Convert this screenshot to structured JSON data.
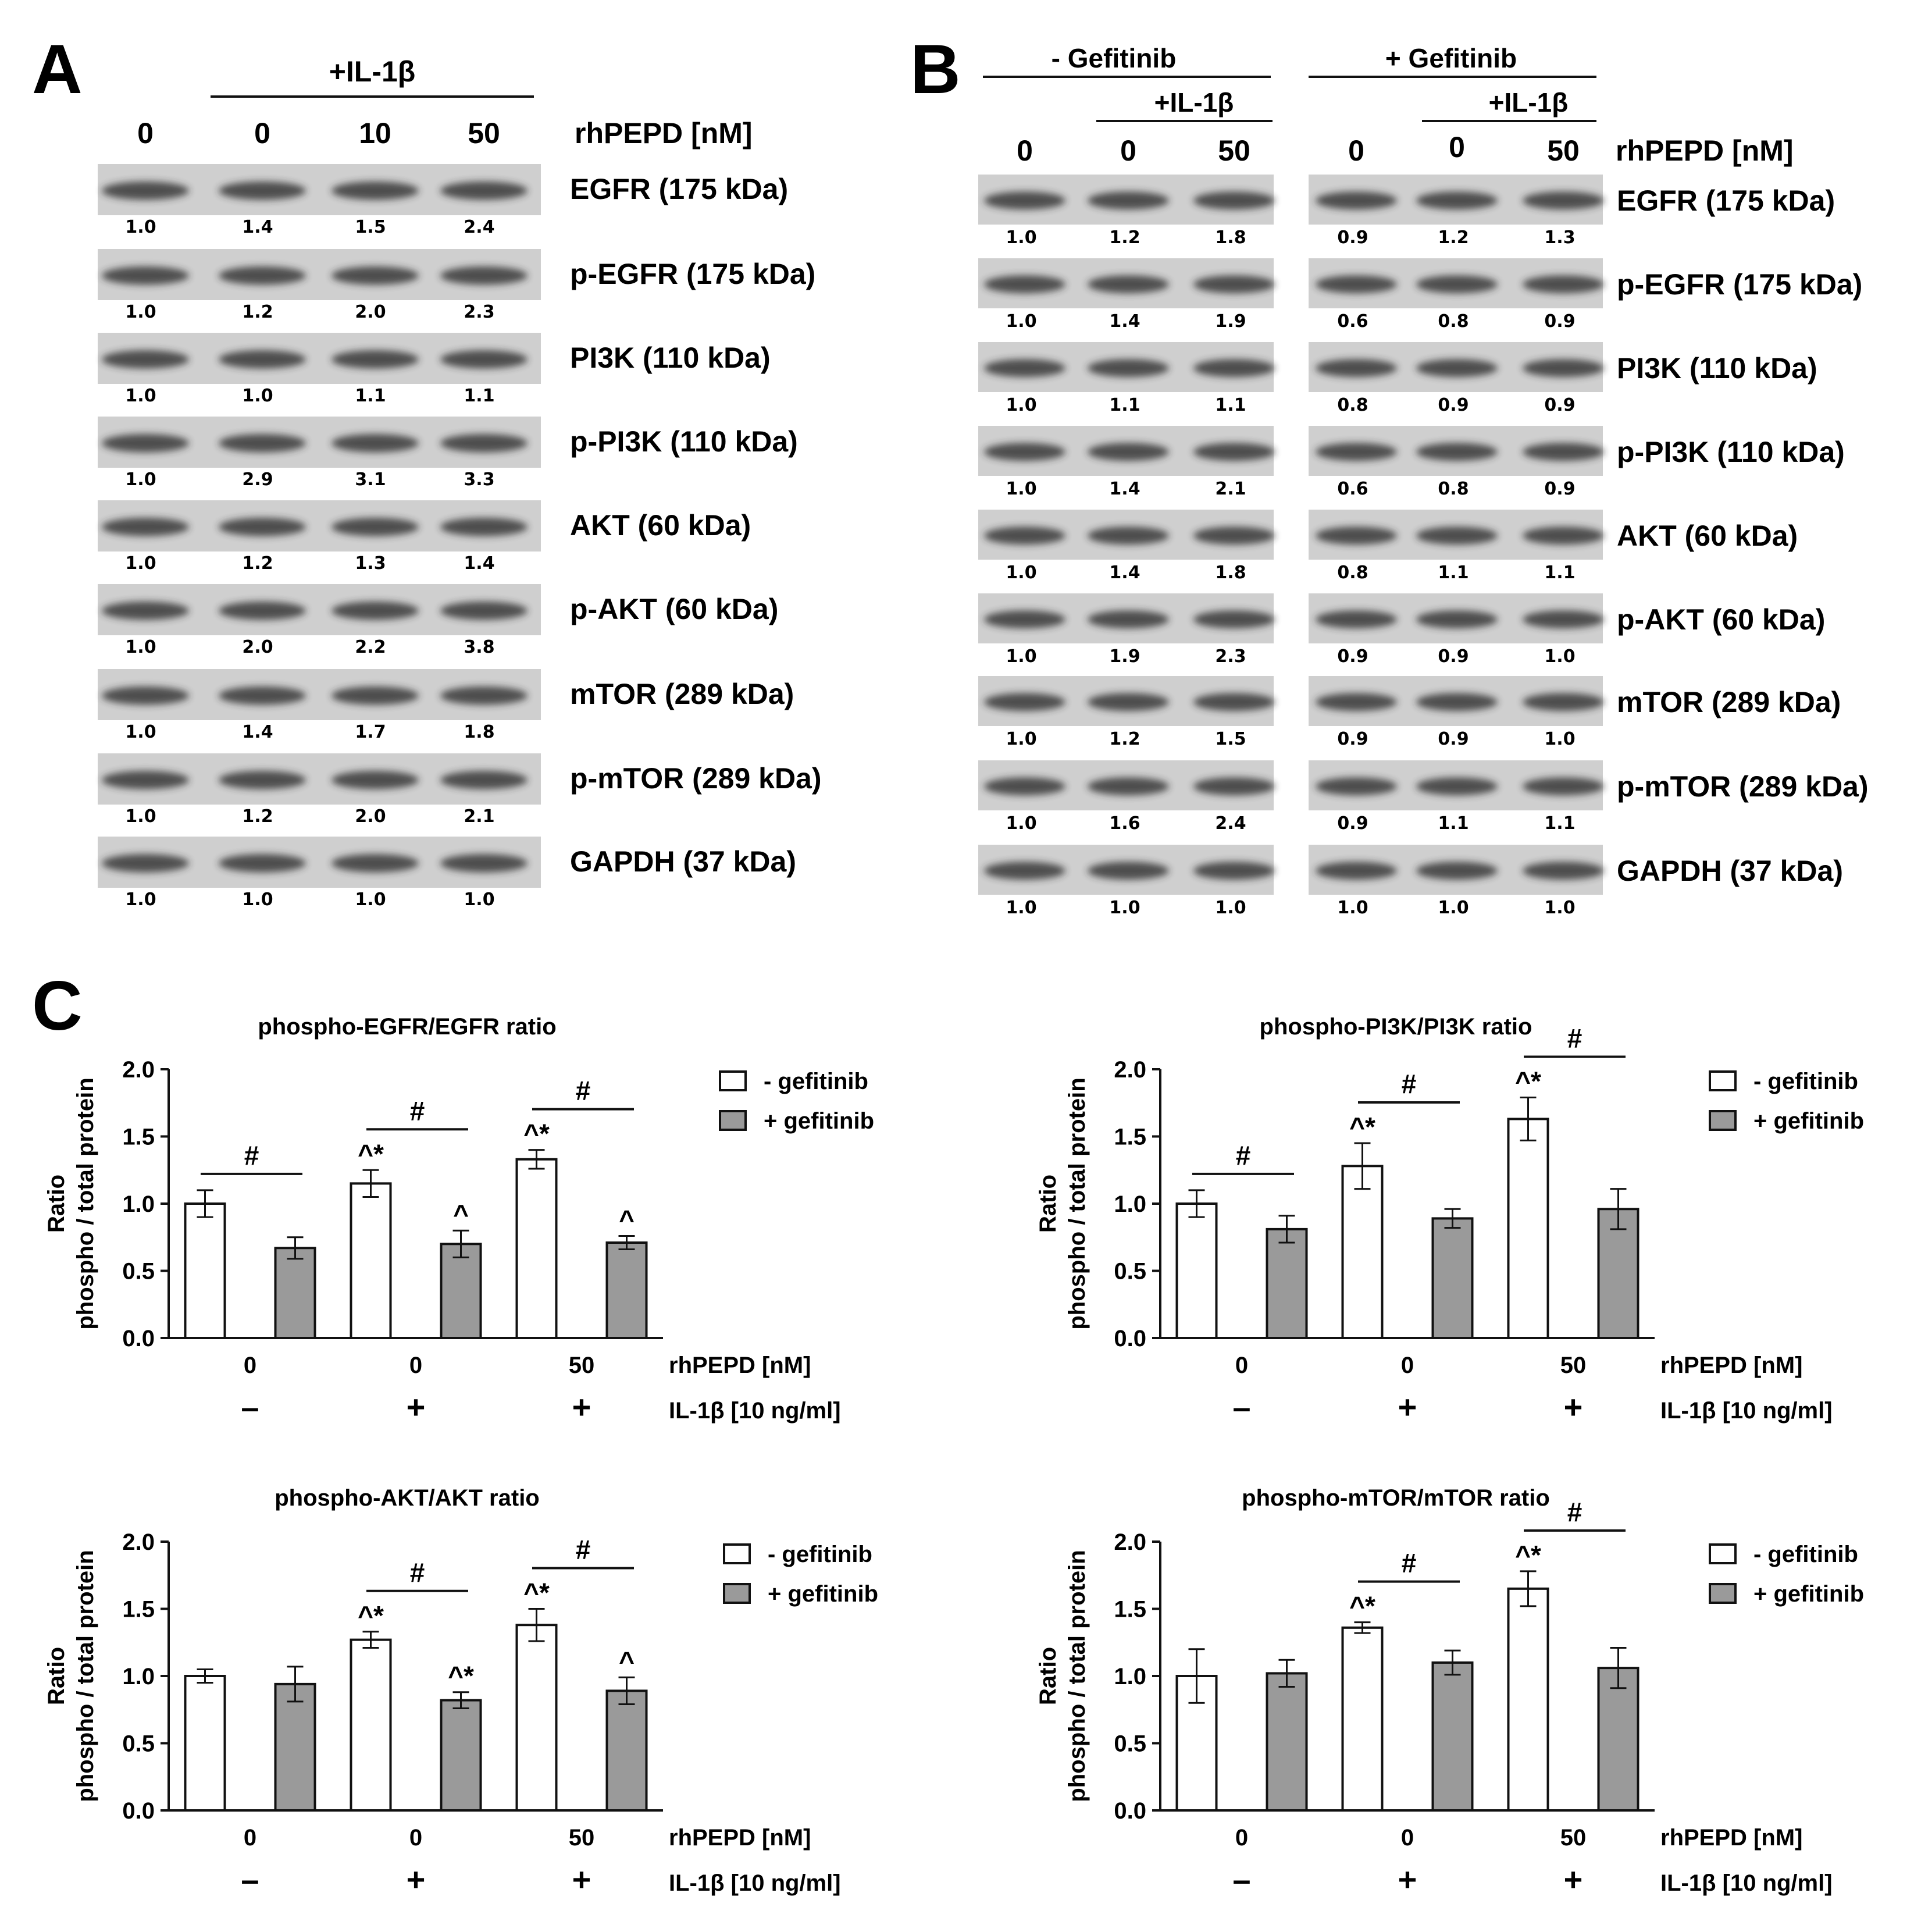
{
  "figure": {
    "panel_a": {
      "letter": "A",
      "header": "+IL-1β",
      "doses": [
        "0",
        "0",
        "10",
        "50"
      ],
      "dose_label": "rhPEPD [nM]",
      "blots": [
        {
          "label": "EGFR (175 kDa)",
          "values": [
            "1.0",
            "1.4",
            "1.5",
            "2.4"
          ]
        },
        {
          "label": "p-EGFR (175 kDa)",
          "values": [
            "1.0",
            "1.2",
            "2.0",
            "2.3"
          ]
        },
        {
          "label": "PI3K (110 kDa)",
          "values": [
            "1.0",
            "1.0",
            "1.1",
            "1.1"
          ]
        },
        {
          "label": "p-PI3K (110 kDa)",
          "values": [
            "1.0",
            "2.9",
            "3.1",
            "3.3"
          ]
        },
        {
          "label": "AKT (60 kDa)",
          "values": [
            "1.0",
            "1.2",
            "1.3",
            "1.4"
          ]
        },
        {
          "label": "p-AKT (60 kDa)",
          "values": [
            "1.0",
            "2.0",
            "2.2",
            "3.8"
          ]
        },
        {
          "label": "mTOR (289 kDa)",
          "values": [
            "1.0",
            "1.4",
            "1.7",
            "1.8"
          ]
        },
        {
          "label": "p-mTOR (289 kDa)",
          "values": [
            "1.0",
            "1.2",
            "2.0",
            "2.1"
          ]
        },
        {
          "label": "GAPDH (37 kDa)",
          "values": [
            "1.0",
            "1.0",
            "1.0",
            "1.0"
          ]
        }
      ]
    },
    "panel_b": {
      "letter": "B",
      "group_minus": "- Gefitinib",
      "group_plus": "+ Gefitinib",
      "il_header": "+IL-1β",
      "doses": [
        "0",
        "0",
        "50",
        "0",
        "0",
        "50"
      ],
      "dose_label": "rhPEPD [nM]",
      "blots": [
        {
          "label": "EGFR (175 kDa)",
          "values": [
            "1.0",
            "1.2",
            "1.8",
            "0.9",
            "1.2",
            "1.3"
          ]
        },
        {
          "label": "p-EGFR (175 kDa)",
          "values": [
            "1.0",
            "1.4",
            "1.9",
            "0.6",
            "0.8",
            "0.9"
          ]
        },
        {
          "label": "PI3K (110 kDa)",
          "values": [
            "1.0",
            "1.1",
            "1.1",
            "0.8",
            "0.9",
            "0.9"
          ]
        },
        {
          "label": "p-PI3K (110 kDa)",
          "values": [
            "1.0",
            "1.4",
            "2.1",
            "0.6",
            "0.8",
            "0.9"
          ]
        },
        {
          "label": "AKT (60 kDa)",
          "values": [
            "1.0",
            "1.4",
            "1.8",
            "0.8",
            "1.1",
            "1.1"
          ]
        },
        {
          "label": "p-AKT (60 kDa)",
          "values": [
            "1.0",
            "1.9",
            "2.3",
            "0.9",
            "0.9",
            "1.0"
          ]
        },
        {
          "label": "mTOR (289 kDa)",
          "values": [
            "1.0",
            "1.2",
            "1.5",
            "0.9",
            "0.9",
            "1.0"
          ]
        },
        {
          "label": "p-mTOR (289 kDa)",
          "values": [
            "1.0",
            "1.6",
            "2.4",
            "0.9",
            "1.1",
            "1.1"
          ]
        },
        {
          "label": "GAPDH (37 kDa)",
          "values": [
            "1.0",
            "1.0",
            "1.0",
            "1.0",
            "1.0",
            "1.0"
          ]
        }
      ]
    },
    "panel_c": {
      "letter": "C"
    }
  },
  "chart_data": [
    {
      "type": "bar",
      "title": "phospho-EGFR/EGFR ratio",
      "ylabel_line1": "Ratio",
      "ylabel_line2": "phospho / total protein",
      "ylim": [
        0,
        2.0
      ],
      "yticks": [
        "0.0",
        "0.5",
        "1.0",
        "1.5",
        "2.0"
      ],
      "categories": [
        "0",
        "0",
        "50"
      ],
      "xlabel": "rhPEPD [nM]",
      "il_signs": [
        "–",
        "+",
        "+"
      ],
      "il_label": "IL-1β [10 ng/ml]",
      "series": [
        {
          "name": "- gefitinib",
          "values": [
            1.0,
            1.15,
            1.33
          ],
          "errors": [
            0.1,
            0.1,
            0.07
          ],
          "marks": [
            "",
            "^*",
            "^*"
          ]
        },
        {
          "name": "+ gefitinib",
          "values": [
            0.67,
            0.7,
            0.71
          ],
          "errors": [
            0.08,
            0.1,
            0.05
          ],
          "marks": [
            "",
            "^",
            "^"
          ]
        }
      ],
      "sig": [
        {
          "group": 0,
          "label": "#"
        },
        {
          "group": 1,
          "label": "#"
        },
        {
          "group": 2,
          "label": "#"
        }
      ]
    },
    {
      "type": "bar",
      "title": "phospho-PI3K/PI3K ratio",
      "ylabel_line1": "Ratio",
      "ylabel_line2": "phospho / total protein",
      "ylim": [
        0,
        2.0
      ],
      "yticks": [
        "0.0",
        "0.5",
        "1.0",
        "1.5",
        "2.0"
      ],
      "categories": [
        "0",
        "0",
        "50"
      ],
      "xlabel": "rhPEPD [nM]",
      "il_signs": [
        "–",
        "+",
        "+"
      ],
      "il_label": "IL-1β [10 ng/ml]",
      "series": [
        {
          "name": "- gefitinib",
          "values": [
            1.0,
            1.28,
            1.63
          ],
          "errors": [
            0.1,
            0.17,
            0.16
          ],
          "marks": [
            "",
            "^*",
            "^*"
          ]
        },
        {
          "name": "+ gefitinib",
          "values": [
            0.81,
            0.89,
            0.96
          ],
          "errors": [
            0.1,
            0.07,
            0.15
          ],
          "marks": [
            "",
            "",
            ""
          ]
        }
      ],
      "sig": [
        {
          "group": 0,
          "label": "#"
        },
        {
          "group": 1,
          "label": "#"
        },
        {
          "group": 2,
          "label": "#"
        }
      ]
    },
    {
      "type": "bar",
      "title": "phospho-AKT/AKT ratio",
      "ylabel_line1": "Ratio",
      "ylabel_line2": "phospho / total protein",
      "ylim": [
        0,
        2.0
      ],
      "yticks": [
        "0.0",
        "0.5",
        "1.0",
        "1.5",
        "2.0"
      ],
      "categories": [
        "0",
        "0",
        "50"
      ],
      "xlabel": "rhPEPD [nM]",
      "il_signs": [
        "–",
        "+",
        "+"
      ],
      "il_label": "IL-1β [10 ng/ml]",
      "series": [
        {
          "name": "- gefitinib",
          "values": [
            1.0,
            1.27,
            1.38
          ],
          "errors": [
            0.05,
            0.06,
            0.12
          ],
          "marks": [
            "",
            "^*",
            "^*"
          ]
        },
        {
          "name": "+ gefitinib",
          "values": [
            0.94,
            0.82,
            0.89
          ],
          "errors": [
            0.13,
            0.06,
            0.1
          ],
          "marks": [
            "",
            "^*",
            "^"
          ]
        }
      ],
      "sig": [
        {
          "group": 1,
          "label": "#"
        },
        {
          "group": 2,
          "label": "#"
        }
      ]
    },
    {
      "type": "bar",
      "title": "phospho-mTOR/mTOR ratio",
      "ylabel_line1": "Ratio",
      "ylabel_line2": "phospho / total protein",
      "ylim": [
        0,
        2.0
      ],
      "yticks": [
        "0.0",
        "0.5",
        "1.0",
        "1.5",
        "2.0"
      ],
      "categories": [
        "0",
        "0",
        "50"
      ],
      "xlabel": "rhPEPD [nM]",
      "il_signs": [
        "–",
        "+",
        "+"
      ],
      "il_label": "IL-1β [10 ng/ml]",
      "series": [
        {
          "name": "- gefitinib",
          "values": [
            1.0,
            1.36,
            1.65
          ],
          "errors": [
            0.2,
            0.04,
            0.13
          ],
          "marks": [
            "",
            "^*",
            "^*"
          ]
        },
        {
          "name": "+ gefitinib",
          "values": [
            1.02,
            1.1,
            1.06
          ],
          "errors": [
            0.1,
            0.09,
            0.15
          ],
          "marks": [
            "",
            "",
            ""
          ]
        }
      ],
      "sig": [
        {
          "group": 1,
          "label": "#"
        },
        {
          "group": 2,
          "label": "#"
        }
      ]
    }
  ]
}
